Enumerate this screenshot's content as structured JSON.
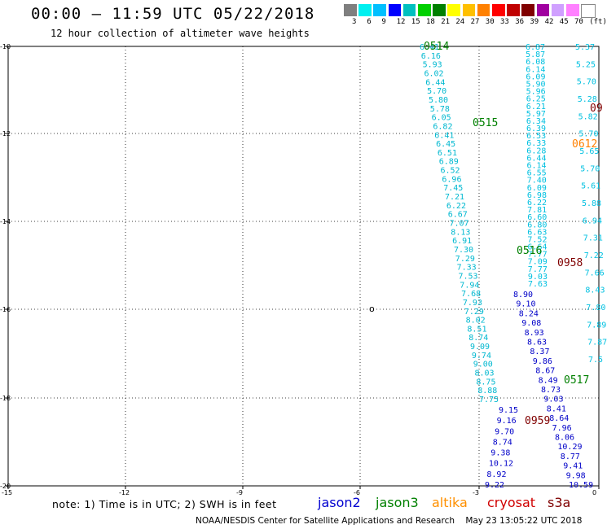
{
  "header": {
    "title": "00:00 – 11:59 UTC 05/22/2018",
    "subtitle": "12 hour collection of altimeter wave heights"
  },
  "color_scale": {
    "colors": [
      "#7f7f7f",
      "#00f0f0",
      "#00c0ff",
      "#0000ff",
      "#00c0c0",
      "#00d000",
      "#008000",
      "#ffff00",
      "#ffc000",
      "#ff8000",
      "#ff0000",
      "#c00000",
      "#800000",
      "#a000a0",
      "#d0a0ff",
      "#ff80ff",
      "#ffffff"
    ],
    "labels": [
      "3",
      "6",
      "9",
      "12",
      "15",
      "18",
      "21",
      "24",
      "27",
      "30",
      "33",
      "36",
      "39",
      "42",
      "45",
      "70"
    ],
    "unit": "(ft)"
  },
  "axes": {
    "lat_labels": [
      "-10",
      "-12",
      "-14",
      "-16",
      "-18",
      "-20"
    ],
    "lon_labels": [
      "-15",
      "-12",
      "-9",
      "-6",
      "-3",
      "0"
    ]
  },
  "map": {
    "land_label": "o",
    "time_labels": [
      {
        "text": "0514",
        "color": "#008000"
      },
      {
        "text": "0515",
        "color": "#008000"
      },
      {
        "text": "0516",
        "color": "#008000"
      },
      {
        "text": "0517",
        "color": "#008000"
      },
      {
        "text": "0612",
        "color": "#ff8000"
      },
      {
        "text": "0958",
        "color": "#800000"
      },
      {
        "text": "0959",
        "color": "#800000"
      },
      {
        "text": "09",
        "color": "#800000"
      }
    ],
    "track_jason3": [
      "6.41",
      "6.16",
      "5.93",
      "6.02",
      "6.44",
      "5.70",
      "5.80",
      "5.78",
      "6.05",
      "6.82",
      "6.41",
      "6.45",
      "6.51",
      "6.89",
      "6.52",
      "6.96",
      "7.45",
      "7.21",
      "6.22",
      "6.67",
      "7.07",
      "8.13",
      "6.91",
      "7.30",
      "7.29",
      "7.33",
      "7.53",
      "7.94",
      "7.68",
      "7.93",
      "7.29",
      "8.02",
      "8.51",
      "8.74",
      "9.09",
      "9.74",
      "9.00",
      "8.03",
      "8.75",
      "8.88",
      "7.75"
    ],
    "track_jason2": [
      "9.15",
      "9.16",
      "9.70",
      "8.74",
      "9.38",
      "10.12",
      "8.92",
      "9.22"
    ],
    "track_altika_left": [
      "8.90",
      "9.10",
      "8.24",
      "9.08",
      "8.93",
      "8.63",
      "8.37",
      "9.86",
      "8.67",
      "8.49",
      "8.73",
      "9.03",
      "8.41",
      "8.64",
      "7.96",
      "8.06",
      "10.29",
      "8.77",
      "9.41",
      "9.98",
      "10.59"
    ],
    "track_altika_mid": [
      "6.87",
      "5.87",
      "6.08",
      "6.14",
      "6.09",
      "5.90",
      "5.96",
      "6.25",
      "6.21",
      "5.97",
      "6.34",
      "6.39",
      "6.53",
      "6.33",
      "6.28",
      "6.44",
      "6.14",
      "6.55",
      "7.40",
      "6.09",
      "6.98",
      "6.22",
      "7.81",
      "6.60",
      "6.80",
      "6.63",
      "7.52",
      "6.64",
      "7.77",
      "7.09",
      "7.77",
      "9.03",
      "7.63"
    ],
    "track_altika_right": [
      "5.37",
      "5.25",
      "5.70",
      "5.28",
      "5.82",
      "5.70",
      "5.65",
      "5.70",
      "5.61",
      "5.88",
      "6.94",
      "7.31",
      "7.22",
      "7.66",
      "8.43",
      "7.80",
      "7.89",
      "7.87",
      "7.5"
    ]
  },
  "footer": {
    "note": "note: 1) Time is in UTC; 2) SWH is in feet",
    "satellites": [
      {
        "name": "jason2",
        "color": "#0000d0"
      },
      {
        "name": "jason3",
        "color": "#008000"
      },
      {
        "name": "altika",
        "color": "#ff9000"
      },
      {
        "name": "cryosat",
        "color": "#d00000"
      },
      {
        "name": "s3a",
        "color": "#800000"
      }
    ],
    "credit": "NOAA/NESDIS Center for Satellite Applications and Research    May 23 13:05:22 UTC 2018"
  }
}
